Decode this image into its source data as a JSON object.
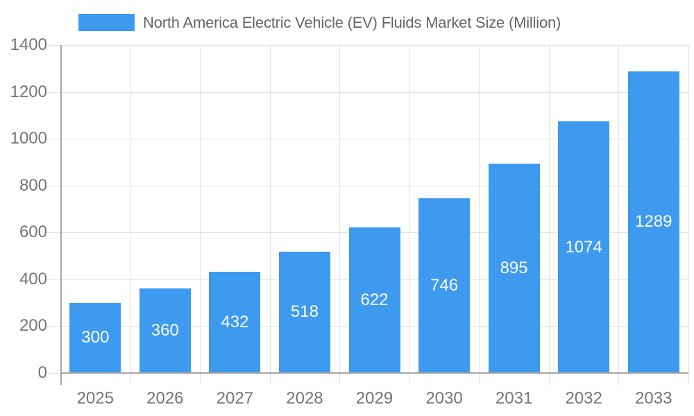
{
  "chart_data": {
    "type": "bar",
    "title": "North America Electric Vehicle (EV) Fluids Market Size (Million)",
    "categories": [
      "2025",
      "2026",
      "2027",
      "2028",
      "2029",
      "2030",
      "2031",
      "2032",
      "2033"
    ],
    "values": [
      300,
      360,
      432,
      518,
      622,
      746,
      895,
      1074,
      1289
    ],
    "bar_labels": [
      "300",
      "360",
      "432",
      "518",
      "622",
      "746",
      "895",
      "1074",
      "1289"
    ],
    "xlabel": "",
    "ylabel": "",
    "ylim": [
      0,
      1400
    ],
    "ytick_step": 200,
    "ytick_labels": [
      "0",
      "200",
      "400",
      "600",
      "800",
      "1000",
      "1200",
      "1400"
    ],
    "grid": true,
    "legend_position": "top",
    "colors": {
      "bar": "#3D9AEF",
      "bar_label_text": "#ffffff",
      "axis_text": "#757575",
      "title_text": "#666666",
      "axis_line": "#a6a6a6",
      "gridline": "#e2e2e2",
      "background": "#ffffff"
    }
  }
}
